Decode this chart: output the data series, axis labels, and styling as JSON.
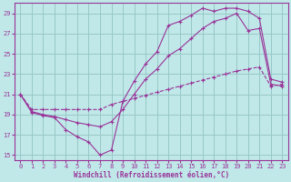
{
  "xlabel": "Windchill (Refroidissement éolien,°C)",
  "background_color": "#c0e8e8",
  "grid_color": "#98c8c8",
  "line_color": "#993399",
  "xlim": [
    -0.5,
    23.5
  ],
  "ylim": [
    14.5,
    30.0
  ],
  "yticks": [
    15,
    17,
    19,
    21,
    23,
    25,
    27,
    29
  ],
  "xticks": [
    0,
    1,
    2,
    3,
    4,
    5,
    6,
    7,
    8,
    9,
    10,
    11,
    12,
    13,
    14,
    15,
    16,
    17,
    18,
    19,
    20,
    21,
    22,
    23
  ],
  "line1_x": [
    0,
    1,
    2,
    3,
    4,
    5,
    6,
    7,
    8,
    9,
    10,
    11,
    12,
    13,
    14,
    15,
    16,
    17,
    18,
    19,
    20,
    21,
    22,
    23
  ],
  "line1_y": [
    21.0,
    19.2,
    18.9,
    18.7,
    17.5,
    16.8,
    16.3,
    15.0,
    15.5,
    20.3,
    22.3,
    24.0,
    25.2,
    27.8,
    28.2,
    28.8,
    29.5,
    29.2,
    29.5,
    29.5,
    29.2,
    28.5,
    22.5,
    22.2
  ],
  "line2_x": [
    0,
    1,
    2,
    3,
    4,
    5,
    6,
    7,
    8,
    9,
    10,
    11,
    12,
    13,
    14,
    15,
    16,
    17,
    18,
    19,
    20,
    21,
    22,
    23
  ],
  "line2_y": [
    21.0,
    19.3,
    19.0,
    18.8,
    18.5,
    18.2,
    18.0,
    17.8,
    18.3,
    19.5,
    21.0,
    22.5,
    23.5,
    24.8,
    25.5,
    26.5,
    27.5,
    28.2,
    28.5,
    29.0,
    27.3,
    27.5,
    22.0,
    21.8
  ],
  "line3_x": [
    0,
    1,
    2,
    3,
    4,
    5,
    6,
    7,
    8,
    9,
    10,
    11,
    12,
    13,
    14,
    15,
    16,
    17,
    18,
    19,
    20,
    21,
    22,
    23
  ],
  "line3_y": [
    21.0,
    19.5,
    19.5,
    19.5,
    19.5,
    19.5,
    19.5,
    19.5,
    20.0,
    20.3,
    20.6,
    20.9,
    21.2,
    21.5,
    21.8,
    22.1,
    22.4,
    22.7,
    23.0,
    23.3,
    23.5,
    23.7,
    21.8,
    22.0
  ],
  "tick_fontsize": 5,
  "xlabel_fontsize": 5.5
}
